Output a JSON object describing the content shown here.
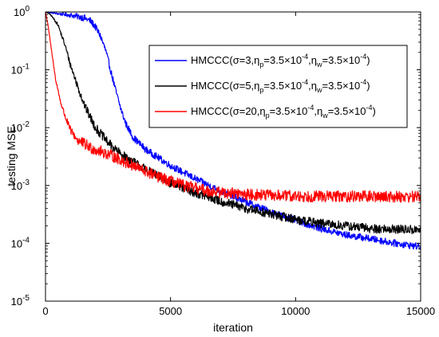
{
  "chart_data": {
    "type": "line",
    "title": "",
    "xlabel": "iteration",
    "ylabel": "testing MSE",
    "xlim": [
      0,
      15000
    ],
    "ylim": [
      1e-05,
      1
    ],
    "yscale": "log",
    "grid": false,
    "legend_position": "top-right",
    "x_ticks": [
      "0",
      "5000",
      "10000",
      "15000"
    ],
    "y_ticks": [
      {
        "base": "10",
        "exp": "0"
      },
      {
        "base": "10",
        "exp": "-1"
      },
      {
        "base": "10",
        "exp": "-2"
      },
      {
        "base": "10",
        "exp": "-3"
      },
      {
        "base": "10",
        "exp": "-4"
      },
      {
        "base": "10",
        "exp": "-5"
      }
    ],
    "series": [
      {
        "name": "HMCCC(σ=3,η_p=3.5×10^-4,η_w=3.5×10^-4)",
        "legend": {
          "prefix": "HMCCC(σ=3,η",
          "s1": "p",
          "mid": "=3.5×10",
          "e1": "-4",
          "mid2": ",η",
          "s2": "w",
          "mid3": "=3.5×10",
          "e2": "-4",
          "suffix": ")"
        },
        "color": "#0000ff",
        "noise": 0.06,
        "points": [
          [
            0,
            1.0
          ],
          [
            500,
            0.93
          ],
          [
            1000,
            0.88
          ],
          [
            1500,
            0.8
          ],
          [
            1800,
            0.7
          ],
          [
            2000,
            0.55
          ],
          [
            2200,
            0.38
          ],
          [
            2400,
            0.22
          ],
          [
            2600,
            0.1
          ],
          [
            2800,
            0.045
          ],
          [
            3000,
            0.022
          ],
          [
            3200,
            0.012
          ],
          [
            3500,
            0.0068
          ],
          [
            4000,
            0.0042
          ],
          [
            5000,
            0.0022
          ],
          [
            6000,
            0.0013
          ],
          [
            7000,
            0.0008
          ],
          [
            8000,
            0.00052
          ],
          [
            9000,
            0.00035
          ],
          [
            10000,
            0.00025
          ],
          [
            11000,
            0.00018
          ],
          [
            12000,
            0.00014
          ],
          [
            13000,
            0.00012
          ],
          [
            14000,
            0.0001
          ],
          [
            15000,
            8.7e-05
          ]
        ]
      },
      {
        "name": "HMCCC(σ=5,η_p=3.5×10^-4,η_w=3.5×10^-4)",
        "legend": {
          "prefix": "HMCCC(σ=5,η",
          "s1": "p",
          "mid": "=3.5×10",
          "e1": "-4",
          "mid2": ",η",
          "s2": "w",
          "mid3": "=3.5×10",
          "e2": "-4",
          "suffix": ")"
        },
        "color": "#000000",
        "noise": 0.08,
        "points": [
          [
            0,
            1.0
          ],
          [
            200,
            0.9
          ],
          [
            500,
            0.6
          ],
          [
            800,
            0.25
          ],
          [
            1000,
            0.12
          ],
          [
            1300,
            0.05
          ],
          [
            1600,
            0.022
          ],
          [
            2000,
            0.01
          ],
          [
            2500,
            0.0055
          ],
          [
            3000,
            0.0035
          ],
          [
            4000,
            0.0019
          ],
          [
            5000,
            0.0011
          ],
          [
            6000,
            0.00075
          ],
          [
            7000,
            0.00053
          ],
          [
            8000,
            0.0004
          ],
          [
            9000,
            0.00032
          ],
          [
            10000,
            0.00026
          ],
          [
            11000,
            0.00022
          ],
          [
            12000,
            0.0002
          ],
          [
            13000,
            0.00018
          ],
          [
            14000,
            0.000175
          ],
          [
            15000,
            0.00017
          ]
        ]
      },
      {
        "name": "HMCCC(σ=20,η_p=3.5×10^-4,η_w=3.5×10^-4)",
        "legend": {
          "prefix": "HMCCC(σ=20,η",
          "s1": "p",
          "mid": "=3.5×10",
          "e1": "-4",
          "mid2": ",η",
          "s2": "w",
          "mid3": "=3.5×10",
          "e2": "-4",
          "suffix": ")"
        },
        "color": "#ff0000",
        "noise": 0.1,
        "points": [
          [
            0,
            1.0
          ],
          [
            100,
            0.6
          ],
          [
            250,
            0.2
          ],
          [
            400,
            0.07
          ],
          [
            600,
            0.028
          ],
          [
            800,
            0.015
          ],
          [
            1000,
            0.009
          ],
          [
            1300,
            0.006
          ],
          [
            1800,
            0.0045
          ],
          [
            2500,
            0.0035
          ],
          [
            3500,
            0.0022
          ],
          [
            4500,
            0.0014
          ],
          [
            5500,
            0.001
          ],
          [
            6500,
            0.0008
          ],
          [
            8000,
            0.0007
          ],
          [
            10000,
            0.00065
          ],
          [
            12000,
            0.00065
          ],
          [
            15000,
            0.00064
          ]
        ]
      }
    ]
  }
}
